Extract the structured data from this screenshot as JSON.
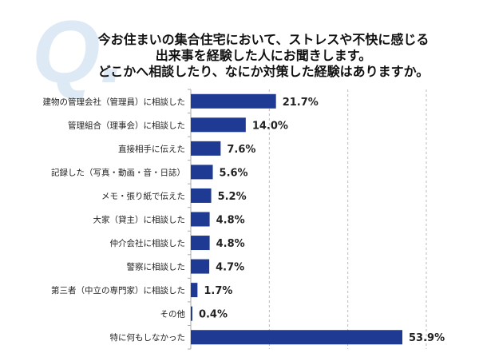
{
  "question_mark": "Q.",
  "title_lines": [
    "今お住まいの集合住宅において、ストレスや不快に感じる",
    "出来事を経験した人にお聞きします。",
    "どこかへ相談したり、なにか対策した経験はありますか。"
  ],
  "chart_data": {
    "type": "bar",
    "orientation": "horizontal",
    "categories": [
      "建物の管理会社（管理員）に相談した",
      "管理組合（理事会）に相談した",
      "直接相手に伝えた",
      "記録した（写真・動画・音・日誌）",
      "メモ・張り紙で伝えた",
      "大家（貸主）に相談した",
      "仲介会社に相談した",
      "警察に相談した",
      "第三者（中立の専門家）に相談した",
      "その他",
      "特に何もしなかった"
    ],
    "values": [
      21.7,
      14.0,
      7.6,
      5.6,
      5.2,
      4.8,
      4.8,
      4.7,
      1.7,
      0.4,
      53.9
    ],
    "data_labels": [
      "21.7%",
      "14.0%",
      "7.6%",
      "5.6%",
      "5.2%",
      "4.8%",
      "4.8%",
      "4.7%",
      "1.7%",
      "0.4%",
      "53.9%"
    ],
    "xlim": [
      0,
      60
    ],
    "grid": "vertical dashed at 20, 40, 60",
    "bar_color": "#1f3a93"
  }
}
